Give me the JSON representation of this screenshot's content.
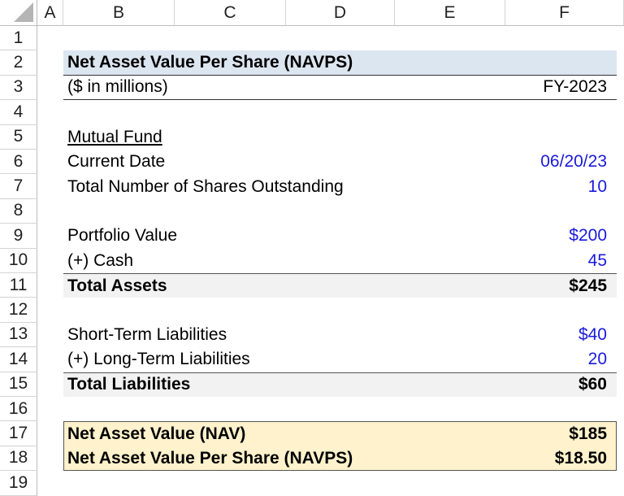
{
  "columns": [
    "A",
    "B",
    "C",
    "D",
    "E",
    "F"
  ],
  "rows": [
    "1",
    "2",
    "3",
    "4",
    "5",
    "6",
    "7",
    "8",
    "9",
    "10",
    "11",
    "12",
    "13",
    "14",
    "15",
    "16",
    "17",
    "18",
    "19"
  ],
  "title": "Net Asset Value Per Share (NAVPS)",
  "units": "($ in millions)",
  "period": "FY-2023",
  "section": "Mutual Fund",
  "current_date": {
    "label": "Current Date",
    "value": "06/20/23"
  },
  "shares": {
    "label": "Total Number of Shares Outstanding",
    "value": "10"
  },
  "portfolio": {
    "label": "Portfolio Value",
    "value": "$200"
  },
  "cash": {
    "label": "(+) Cash",
    "value": "45"
  },
  "total_assets": {
    "label": "Total Assets",
    "value": "$245"
  },
  "st_liab": {
    "label": "Short-Term Liabilities",
    "value": "$40"
  },
  "lt_liab": {
    "label": "(+) Long-Term Liabilities",
    "value": "20"
  },
  "total_liab": {
    "label": "Total Liabilities",
    "value": "$60"
  },
  "nav": {
    "label": "Net Asset Value (NAV)",
    "value": "$185"
  },
  "navps": {
    "label": "Net Asset Value Per Share (NAVPS)",
    "value": "$18.50"
  },
  "colors": {
    "title_bg": "#dce6f1",
    "total_bg": "#f2f2f2",
    "result_bg": "#fff2cc",
    "input": "#1a1adc"
  }
}
